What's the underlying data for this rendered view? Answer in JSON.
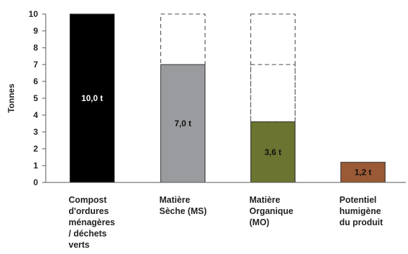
{
  "chart_data": {
    "type": "bar",
    "ylabel": "Tonnes",
    "ylim": [
      0,
      10
    ],
    "yticks": [
      "0",
      "1",
      "2",
      "3",
      "4",
      "5",
      "6",
      "7",
      "8",
      "9",
      "10"
    ],
    "categories": [
      [
        "Compost",
        "d'ordures",
        "ménagères",
        "/ déchets",
        "verts"
      ],
      [
        "Matière",
        "Sèche (MS)"
      ],
      [
        "Matière",
        "Organique",
        "(MO)"
      ],
      [
        "Potentiel",
        "humigène",
        "du produit"
      ]
    ],
    "values": [
      10.0,
      7.0,
      3.6,
      1.2
    ],
    "value_labels": [
      "10,0 t",
      "7,0 t",
      "3,6 t",
      "1,2 t"
    ],
    "colors": [
      "#000000",
      "#9a9b9f",
      "#6b7430",
      "#9a5a35"
    ],
    "value_label_colors": [
      "#ffffff",
      "#111111",
      "#111111",
      "#111111"
    ],
    "dashed_outlines": [
      [],
      [
        10
      ],
      [
        10,
        7
      ],
      []
    ],
    "grid": false
  }
}
